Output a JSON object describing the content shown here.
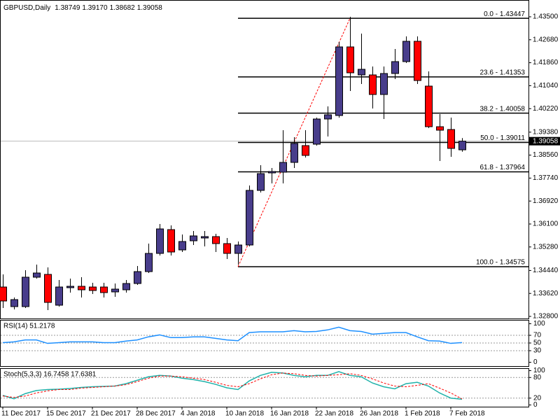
{
  "chart_data": [
    {
      "type": "candlestick",
      "title": "GBPUSD,Daily",
      "header_values": [
        "1.38749",
        "1.39170",
        "1.38682",
        "1.39058"
      ],
      "categories": [
        "11 Dec 2017",
        null,
        null,
        null,
        "15 Dec 2017",
        null,
        null,
        null,
        "21 Dec 2017",
        null,
        null,
        null,
        "28 Dec 2017",
        null,
        null,
        null,
        "4 Jan 2018",
        null,
        null,
        null,
        "10 Jan 2018",
        null,
        null,
        null,
        "16 Jan 2018",
        null,
        null,
        null,
        "22 Jan 2018",
        null,
        null,
        null,
        "26 Jan 2018",
        null,
        null,
        null,
        "1 Feb 2018",
        null,
        null,
        null,
        "7 Feb 2018",
        null
      ],
      "open": [
        1.3385,
        1.3315,
        1.3315,
        1.342,
        1.343,
        1.332,
        1.33825,
        1.33875,
        1.3385,
        1.3385,
        1.33675,
        1.3375,
        1.33975,
        1.344,
        1.3505,
        1.359,
        1.35175,
        1.355,
        1.356,
        1.3565,
        1.354,
        1.3505,
        1.3535,
        1.373,
        1.37925,
        1.3795,
        1.383,
        1.389,
        1.3895,
        1.3985,
        1.39975,
        1.42425,
        1.41425,
        1.41425,
        1.40725,
        1.41475,
        1.419,
        1.42625,
        1.41025,
        1.39575,
        1.39475,
        1.38749
      ],
      "high": [
        1.343,
        1.33475,
        1.3445,
        1.3465,
        1.3455,
        1.341,
        1.3415,
        1.342,
        1.34,
        1.34,
        1.33975,
        1.341,
        1.346,
        1.354,
        1.361,
        1.3605,
        1.35725,
        1.3585,
        1.3585,
        1.3575,
        1.356,
        1.35475,
        1.37475,
        1.382,
        1.381,
        1.3945,
        1.392,
        1.3945,
        1.399,
        1.403,
        1.426,
        1.435,
        1.429,
        1.41725,
        1.41725,
        1.4235,
        1.428,
        1.428,
        1.4155,
        1.40025,
        1.399,
        1.3917
      ],
      "low": [
        1.331,
        1.3305,
        1.331,
        1.3415,
        1.33025,
        1.3315,
        1.3365,
        1.33475,
        1.336,
        1.33475,
        1.335,
        1.3365,
        1.33925,
        1.3435,
        1.34975,
        1.34975,
        1.351,
        1.3535,
        1.353,
        1.351,
        1.3485,
        1.3465,
        1.353,
        1.37225,
        1.3755,
        1.3755,
        1.381,
        1.38475,
        1.389,
        1.39225,
        1.399,
        1.4085,
        1.411,
        1.40225,
        1.3985,
        1.41275,
        1.4185,
        1.411,
        1.39525,
        1.3835,
        1.385,
        1.38682
      ],
      "close": [
        1.3335,
        1.334,
        1.342,
        1.3435,
        1.333,
        1.3385,
        1.33875,
        1.3375,
        1.33725,
        1.3365,
        1.33775,
        1.33975,
        1.344,
        1.3505,
        1.35925,
        1.351,
        1.35475,
        1.35675,
        1.3565,
        1.354,
        1.3505,
        1.3535,
        1.373,
        1.379,
        1.37975,
        1.383,
        1.38975,
        1.3855,
        1.3985,
        1.4,
        1.42425,
        1.415,
        1.41625,
        1.40725,
        1.41475,
        1.419,
        1.42625,
        1.41225,
        1.39575,
        1.3945,
        1.388,
        1.39058
      ],
      "up_color": "#483d8b",
      "down_color": "#ff0000",
      "ylim": [
        1.32725,
        1.441
      ],
      "yticks": [
        {
          "value": 1.435,
          "label": "1.43500"
        },
        {
          "value": 1.4268,
          "label": "1.42680"
        },
        {
          "value": 1.4186,
          "label": "1.41860"
        },
        {
          "value": 1.4104,
          "label": "1.41040"
        },
        {
          "value": 1.4022,
          "label": "1.40220"
        },
        {
          "value": 1.3938,
          "label": "1.39380"
        },
        {
          "value": 1.3856,
          "label": "1.38560"
        },
        {
          "value": 1.3774,
          "label": "1.37740"
        },
        {
          "value": 1.3692,
          "label": "1.36920"
        },
        {
          "value": 1.361,
          "label": "1.36100"
        },
        {
          "value": 1.3528,
          "label": "1.35280"
        },
        {
          "value": 1.3444,
          "label": "1.34440"
        },
        {
          "value": 1.3362,
          "label": "1.33620"
        },
        {
          "value": 1.328,
          "label": "1.32800"
        }
      ],
      "last_price": {
        "value": 1.39058,
        "label": "1.39058"
      },
      "fibonacci": [
        {
          "value": 1.43447,
          "label": "0.0 - 1.43447"
        },
        {
          "value": 1.41353,
          "label": "23.6 - 1.41353"
        },
        {
          "value": 1.40058,
          "label": "38.2 - 1.40058"
        },
        {
          "value": 1.39011,
          "label": "50.0 - 1.39011"
        },
        {
          "value": 1.37964,
          "label": "61.8 - 1.37964"
        },
        {
          "value": 1.34575,
          "label": "100.0 - 1.34575"
        }
      ]
    },
    {
      "type": "line",
      "title": "RSI(14) 51.2178",
      "series": [
        {
          "color": "#1e90ff",
          "values": [
            51,
            53,
            58,
            58,
            49,
            51,
            53,
            53,
            53,
            51,
            51,
            55,
            58,
            66,
            71,
            64,
            64,
            66,
            66,
            62,
            58,
            56,
            77,
            79,
            79,
            79,
            82,
            79,
            80,
            84,
            91,
            82,
            80,
            73,
            75,
            77,
            77,
            66,
            56,
            55,
            49,
            51.2178
          ]
        }
      ],
      "ylim": [
        -10,
        110
      ],
      "yticks": [
        100,
        70,
        50,
        30,
        0
      ],
      "levels": [
        70,
        50,
        30
      ]
    },
    {
      "type": "line",
      "title": "Stoch(5,3,3) 16.7458 17.6381",
      "series": [
        {
          "color": "#20b2aa",
          "values": [
            28,
            18,
            33,
            42,
            45,
            46,
            48,
            51,
            53,
            54,
            55,
            62,
            72,
            82,
            86,
            84,
            78,
            74,
            68,
            60,
            50,
            45,
            70,
            86,
            95,
            93,
            86,
            82,
            86,
            86,
            97,
            86,
            82,
            64,
            53,
            47,
            62,
            66,
            55,
            35,
            20,
            16.7458
          ]
        },
        {
          "color": "#ff0000",
          "dash": true,
          "values": [
            26,
            22,
            26,
            35,
            41,
            45,
            45,
            49,
            51,
            53,
            55,
            59,
            68,
            78,
            84,
            84,
            82,
            78,
            74,
            66,
            57,
            53,
            62,
            76,
            88,
            93,
            91,
            86,
            84,
            86,
            88,
            91,
            86,
            76,
            64,
            55,
            53,
            57,
            62,
            49,
            35,
            17.6381
          ]
        }
      ],
      "ylim": [
        -5,
        107
      ],
      "yticks": [
        100,
        80,
        20,
        0
      ],
      "levels": [
        80,
        20
      ]
    }
  ]
}
